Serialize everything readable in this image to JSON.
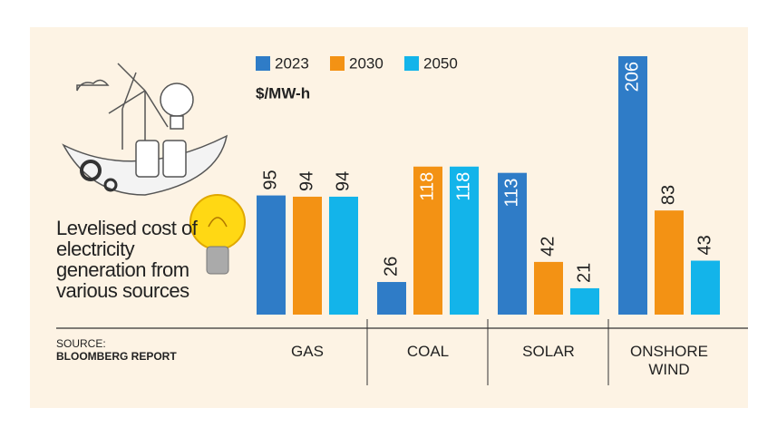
{
  "chart_data": {
    "type": "bar",
    "title": "Levelised cost of electricity generation from various sources",
    "unit_label": "$/MW-h",
    "source_label": "SOURCE:",
    "source": "BLOOMBERG REPORT",
    "categories": [
      "GAS",
      "COAL",
      "SOLAR",
      "ONSHORE WIND"
    ],
    "series": [
      {
        "name": "2023",
        "color": "#2f7cc7",
        "values": [
          95,
          26,
          113,
          206
        ]
      },
      {
        "name": "2030",
        "color": "#f39214",
        "values": [
          94,
          118,
          42,
          83
        ]
      },
      {
        "name": "2050",
        "color": "#13b4ea",
        "values": [
          94,
          118,
          21,
          43
        ]
      }
    ]
  }
}
